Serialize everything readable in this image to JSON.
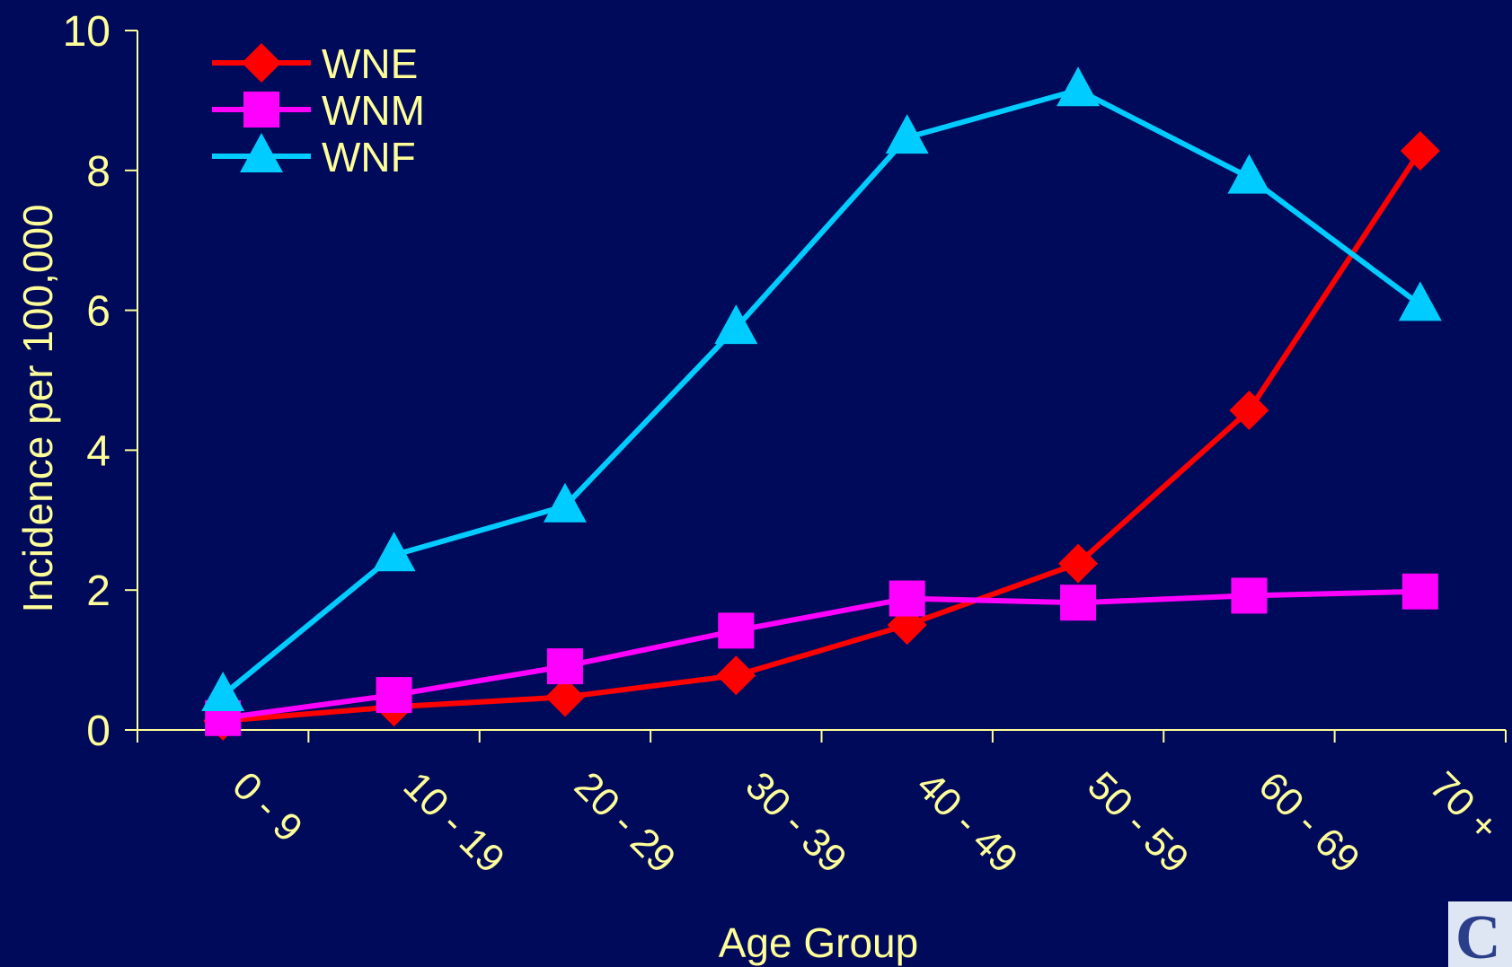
{
  "chart_data": {
    "type": "line",
    "title": "",
    "xlabel": "Age Group",
    "ylabel": "Incidence per 100,000",
    "categories": [
      "0 - 9",
      "10 - 19",
      "20 - 29",
      "30 - 39",
      "40 - 49",
      "50 - 59",
      "60 - 69",
      "70 +"
    ],
    "ylim": [
      0,
      10
    ],
    "yticks": [
      "0",
      "2",
      "4",
      "6",
      "8",
      "10"
    ],
    "grid": false,
    "legend_position": "top-left",
    "series": [
      {
        "name": "WNE",
        "color": "#ff0000",
        "marker": "diamond",
        "values": [
          0.13,
          0.33,
          0.47,
          0.78,
          1.5,
          2.38,
          4.57,
          8.28
        ]
      },
      {
        "name": "WNM",
        "color": "#ff00ff",
        "marker": "square",
        "values": [
          0.17,
          0.5,
          0.91,
          1.42,
          1.88,
          1.82,
          1.92,
          1.98
        ]
      },
      {
        "name": "WNF",
        "color": "#00ccff",
        "marker": "triangle",
        "values": [
          0.5,
          2.5,
          3.2,
          5.75,
          8.47,
          9.15,
          7.9,
          6.08
        ]
      }
    ]
  },
  "colors": {
    "background": "#000a5a",
    "text": "#ffff99",
    "axis": "#ffff99"
  },
  "logo": {
    "letter": "C"
  }
}
